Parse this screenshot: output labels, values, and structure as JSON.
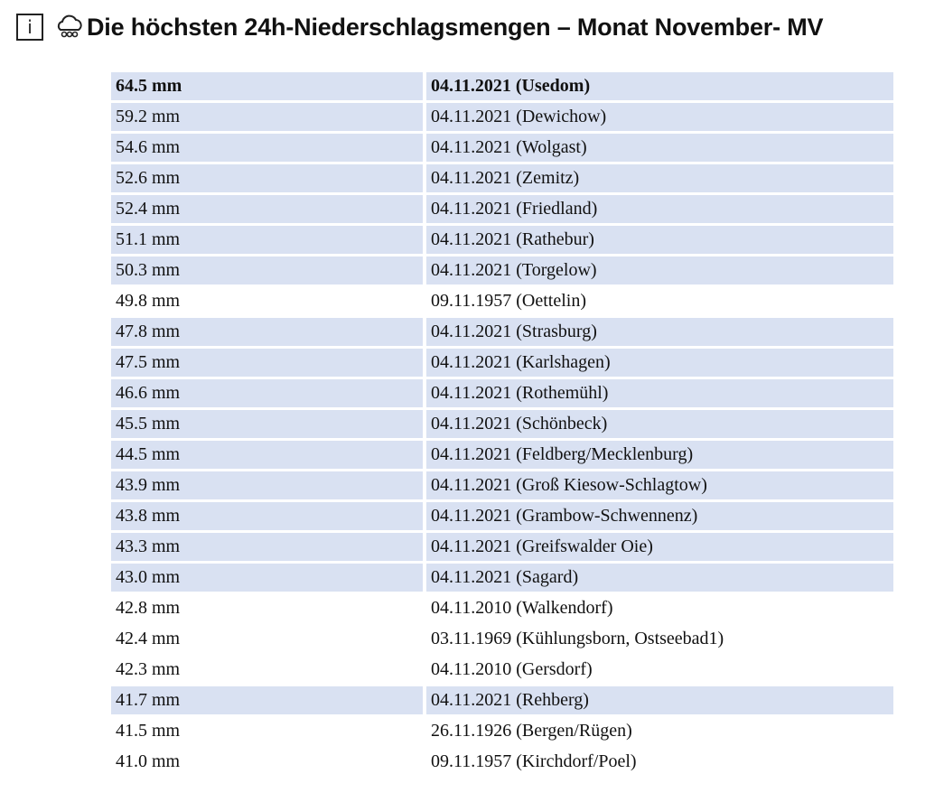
{
  "header": {
    "info_label": "i",
    "icon": "cloud-rain-icon",
    "title": "Die höchsten 24h-Niederschlagsmengen – Monat November- MV"
  },
  "colors": {
    "highlight": "#d9e1f2"
  },
  "rows": [
    {
      "amount": "64.5 mm",
      "event": "04.11.2021 (Usedom)",
      "highlight": true,
      "bold": true
    },
    {
      "amount": "59.2 mm",
      "event": "04.11.2021 (Dewichow)",
      "highlight": true
    },
    {
      "amount": "54.6 mm",
      "event": "04.11.2021 (Wolgast)",
      "highlight": true
    },
    {
      "amount": "52.6 mm",
      "event": "04.11.2021 (Zemitz)",
      "highlight": true
    },
    {
      "amount": "52.4 mm",
      "event": "04.11.2021 (Friedland)",
      "highlight": true
    },
    {
      "amount": "51.1 mm",
      "event": "04.11.2021 (Rathebur)",
      "highlight": true
    },
    {
      "amount": "50.3 mm",
      "event": "04.11.2021 (Torgelow)",
      "highlight": true
    },
    {
      "amount": "49.8 mm",
      "event": "09.11.1957 (Oettelin)",
      "highlight": false
    },
    {
      "amount": "47.8 mm",
      "event": "04.11.2021 (Strasburg)",
      "highlight": true
    },
    {
      "amount": "47.5 mm",
      "event": "04.11.2021 (Karlshagen)",
      "highlight": true
    },
    {
      "amount": "46.6 mm",
      "event": "04.11.2021 (Rothemühl)",
      "highlight": true
    },
    {
      "amount": "45.5 mm",
      "event": "04.11.2021 (Schönbeck)",
      "highlight": true
    },
    {
      "amount": "44.5 mm",
      "event": "04.11.2021 (Feldberg/Mecklenburg)",
      "highlight": true
    },
    {
      "amount": "43.9 mm",
      "event": "04.11.2021 (Groß Kiesow-Schlagtow)",
      "highlight": true
    },
    {
      "amount": "43.8 mm",
      "event": "04.11.2021 (Grambow-Schwennenz)",
      "highlight": true
    },
    {
      "amount": "43.3 mm",
      "event": "04.11.2021 (Greifswalder Oie)",
      "highlight": true
    },
    {
      "amount": "43.0 mm",
      "event": "04.11.2021 (Sagard)",
      "highlight": true
    },
    {
      "amount": "42.8 mm",
      "event": "04.11.2010 (Walkendorf)",
      "highlight": false
    },
    {
      "amount": "42.4 mm",
      "event": "03.11.1969 (Kühlungsborn, Ostseebad1)",
      "highlight": false
    },
    {
      "amount": "42.3 mm",
      "event": "04.11.2010 (Gersdorf)",
      "highlight": false
    },
    {
      "amount": "41.7 mm",
      "event": "04.11.2021 (Rehberg)",
      "highlight": true
    },
    {
      "amount": "41.5 mm",
      "event": "26.11.1926 (Bergen/Rügen)",
      "highlight": false
    },
    {
      "amount": "41.0 mm",
      "event": "09.11.1957 (Kirchdorf/Poel)",
      "highlight": false
    }
  ]
}
